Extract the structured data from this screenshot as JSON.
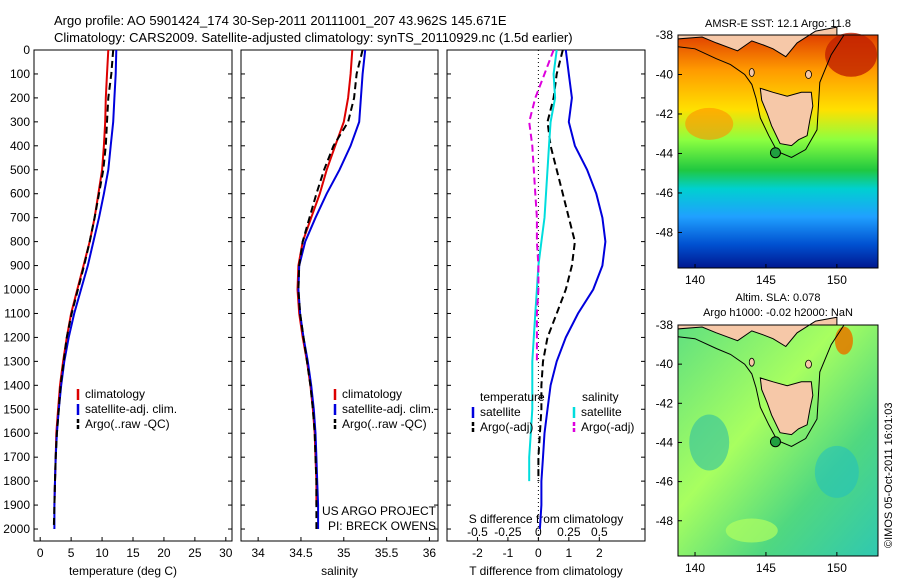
{
  "header": {
    "line1": "Argo profile: AO 5901424_174 30-Sep-2011 20111001_207 43.962S 145.671E",
    "line2": "Climatology: CARS2009. Satellite-adjusted climatology: synTS_20110929.nc (1.5d earlier)"
  },
  "colors": {
    "climatology": "#dd0000",
    "satellite": "#0000dd",
    "argo": "#000000",
    "sal_satellite": "#00dddd",
    "sal_argo": "#dd00dd"
  },
  "chart_data": [
    {
      "type": "line",
      "xlabel": "temperature (deg C)",
      "ylim": [
        0,
        2050
      ],
      "xlim": [
        -1,
        31
      ],
      "xticks": [
        "0",
        "5",
        "10",
        "15",
        "20",
        "25",
        "30"
      ],
      "yticks": [
        "0",
        "100",
        "200",
        "300",
        "400",
        "500",
        "600",
        "700",
        "800",
        "900",
        "1000",
        "1100",
        "1200",
        "1300",
        "1400",
        "1500",
        "1600",
        "1700",
        "1800",
        "1900",
        "2000"
      ],
      "legend": [
        "climatology",
        "satellite-adj. clim.",
        "Argo(..raw -QC)"
      ],
      "series": [
        {
          "name": "climatology",
          "x": [
            11.0,
            10.8,
            10.6,
            10.5,
            10.3,
            10.0,
            9.4,
            8.8,
            8.0,
            7.0,
            6.0,
            5.0,
            4.3,
            3.7,
            3.2,
            2.9,
            2.6,
            2.5,
            2.4,
            2.3
          ],
          "y": [
            0,
            100,
            200,
            300,
            400,
            500,
            600,
            700,
            800,
            900,
            1000,
            1100,
            1200,
            1300,
            1400,
            1500,
            1600,
            1700,
            1800,
            1900
          ]
        },
        {
          "name": "satellite-adj. clim.",
          "x": [
            12.3,
            12.2,
            12.0,
            11.8,
            11.4,
            11.0,
            10.3,
            9.5,
            8.6,
            7.7,
            6.6,
            5.5,
            4.6,
            3.9,
            3.4,
            3.0,
            2.7,
            2.5,
            2.4,
            2.3,
            2.3
          ],
          "y": [
            0,
            100,
            200,
            300,
            400,
            500,
            600,
            700,
            800,
            900,
            1000,
            1100,
            1200,
            1300,
            1400,
            1500,
            1600,
            1700,
            1800,
            1900,
            2000
          ]
        },
        {
          "name": "Argo(..raw -QC)",
          "x": [
            11.8,
            11.5,
            11.0,
            10.8,
            10.6,
            10.2,
            9.5,
            8.8,
            8.0,
            7.1,
            6.1,
            5.1,
            4.3,
            3.8,
            3.3,
            3.0,
            2.7,
            2.5,
            2.4,
            2.3,
            2.2
          ],
          "y": [
            0,
            100,
            200,
            300,
            400,
            500,
            600,
            700,
            800,
            900,
            1000,
            1100,
            1200,
            1300,
            1400,
            1500,
            1600,
            1700,
            1800,
            1900,
            2000
          ]
        }
      ]
    },
    {
      "type": "line",
      "xlabel": "salinity",
      "ylim": [
        0,
        2050
      ],
      "xlim": [
        33.8,
        36.1
      ],
      "xticks": [
        "34",
        "34.5",
        "35",
        "35.5",
        "36"
      ],
      "legend": [
        "climatology",
        "satellite-adj. clim.",
        "Argo(..raw -QC)"
      ],
      "annotations": [
        "US ARGO PROJECT",
        "PI: BRECK OWENS"
      ],
      "series": [
        {
          "name": "climatology",
          "x": [
            35.1,
            35.08,
            35.05,
            35.0,
            34.9,
            34.8,
            34.72,
            34.62,
            34.52,
            34.47,
            34.46,
            34.48,
            34.52,
            34.57,
            34.61,
            34.64,
            34.66,
            34.67,
            34.68,
            34.68
          ],
          "y": [
            0,
            100,
            200,
            300,
            400,
            500,
            600,
            700,
            800,
            900,
            1000,
            1100,
            1200,
            1300,
            1400,
            1500,
            1600,
            1700,
            1800,
            1900
          ]
        },
        {
          "name": "satellite-adj. clim.",
          "x": [
            35.25,
            35.22,
            35.2,
            35.18,
            35.08,
            34.95,
            34.8,
            34.67,
            34.55,
            34.48,
            34.47,
            34.49,
            34.53,
            34.58,
            34.62,
            34.65,
            34.67,
            34.68,
            34.69,
            34.7,
            34.7
          ],
          "y": [
            0,
            100,
            200,
            300,
            400,
            500,
            600,
            700,
            800,
            900,
            1000,
            1100,
            1200,
            1300,
            1400,
            1500,
            1600,
            1700,
            1800,
            1900,
            2000
          ]
        },
        {
          "name": "Argo(..raw -QC)",
          "x": [
            35.22,
            35.15,
            35.12,
            35.05,
            34.88,
            34.77,
            34.68,
            34.6,
            34.52,
            34.48,
            34.47,
            34.49,
            34.53,
            34.57,
            34.61,
            34.64,
            34.66,
            34.67,
            34.68,
            34.68,
            34.68
          ],
          "y": [
            0,
            100,
            200,
            300,
            400,
            500,
            600,
            700,
            800,
            900,
            1000,
            1100,
            1200,
            1300,
            1400,
            1500,
            1600,
            1700,
            1800,
            1900,
            2000
          ]
        }
      ]
    },
    {
      "type": "line",
      "xlabel": "T difference from climatology",
      "top_label": "S difference from climatology",
      "ylim": [
        0,
        2050
      ],
      "xlim": [
        -3,
        3.5
      ],
      "xticks": [
        "-2",
        "-1",
        "0",
        "1",
        "2"
      ],
      "top_ticks": [
        "-0.5",
        "-0.25",
        "0",
        "0.25",
        "0.5"
      ],
      "legend_headers": [
        "temperature",
        "salinity"
      ],
      "legend_left": [
        "satellite",
        "Argo(-adj)"
      ],
      "legend_right": [
        "satellite",
        "Argo(-adj)"
      ],
      "series": [
        {
          "name": "temperature satellite",
          "x": [
            0.9,
            1.0,
            1.1,
            1.0,
            1.2,
            1.6,
            1.9,
            2.1,
            2.2,
            2.1,
            1.8,
            1.3,
            0.9,
            0.6,
            0.4,
            0.3,
            0.2,
            0.15,
            0.1,
            0.1,
            0.05
          ],
          "y": [
            0,
            100,
            200,
            300,
            400,
            500,
            600,
            700,
            800,
            900,
            1000,
            1100,
            1200,
            1300,
            1400,
            1500,
            1600,
            1700,
            1800,
            1900,
            2000
          ]
        },
        {
          "name": "temperature Argo(-adj)",
          "x": [
            0.8,
            0.6,
            0.5,
            0.3,
            0.4,
            0.6,
            0.8,
            1.0,
            1.2,
            1.1,
            0.9,
            0.6,
            0.3,
            0.15,
            0.1,
            0.1,
            0.05,
            0.0,
            0.0
          ],
          "y": [
            0,
            100,
            200,
            300,
            400,
            500,
            600,
            700,
            800,
            900,
            1000,
            1100,
            1200,
            1300,
            1400,
            1500,
            1600,
            1700,
            1800
          ]
        },
        {
          "name": "salinity satellite",
          "x": [
            0.6,
            0.5,
            0.55,
            0.4,
            0.35,
            0.3,
            0.25,
            0.2,
            0.1,
            0.0,
            -0.05,
            -0.1,
            -0.15,
            -0.2,
            -0.2,
            -0.2,
            -0.25,
            -0.3,
            -0.3
          ],
          "y": [
            0,
            100,
            200,
            300,
            400,
            500,
            600,
            700,
            800,
            900,
            1000,
            1100,
            1200,
            1300,
            1400,
            1500,
            1600,
            1700,
            1800
          ]
        },
        {
          "name": "salinity Argo(-adj)",
          "x": [
            0.5,
            0.2,
            -0.1,
            -0.3,
            -0.2,
            -0.15,
            -0.1,
            -0.05,
            -0.05,
            0.0,
            0.0,
            -0.05,
            -0.05,
            -0.05
          ],
          "y": [
            0,
            100,
            200,
            300,
            400,
            500,
            600,
            700,
            800,
            900,
            1000,
            1100,
            1200,
            1300
          ]
        }
      ]
    }
  ],
  "maps": [
    {
      "title": "AMSR-E SST: 12.1  Argo: 11.8",
      "yticks": [
        "-38",
        "-40",
        "-42",
        "-44",
        "-46",
        "-48"
      ],
      "xticks": [
        "140",
        "145",
        "150"
      ]
    },
    {
      "title_line1": "Altim. SLA: 0.078",
      "title_line2": "Argo h1000: -0.02 h2000: NaN",
      "yticks": [
        "-38",
        "-40",
        "-42",
        "-44",
        "-46",
        "-48"
      ],
      "xticks": [
        "140",
        "145",
        "150"
      ]
    }
  ],
  "footer": "©IMOS 05-Oct-2011 16:01:03"
}
